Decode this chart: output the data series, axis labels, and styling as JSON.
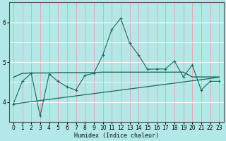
{
  "xlabel": "Humidex (Indice chaleur)",
  "bg_color": "#b3e8e8",
  "grid_color_v": "#f0a0a0",
  "grid_color_h": "#ffffff",
  "line_color": "#1a6b5a",
  "xlim": [
    -0.5,
    23.5
  ],
  "ylim": [
    3.5,
    6.5
  ],
  "xticks": [
    0,
    1,
    2,
    3,
    4,
    5,
    6,
    7,
    8,
    9,
    10,
    11,
    12,
    13,
    14,
    15,
    16,
    17,
    18,
    19,
    20,
    21,
    22,
    23
  ],
  "yticks": [
    4,
    5,
    6
  ],
  "series1_x": [
    0,
    1,
    2,
    3,
    4,
    5,
    6,
    7,
    8,
    9,
    10,
    11,
    12,
    13,
    14,
    15,
    16,
    17,
    18,
    19,
    20,
    21,
    22,
    23
  ],
  "series1_y": [
    3.95,
    4.52,
    4.72,
    3.65,
    4.7,
    4.52,
    4.38,
    4.3,
    4.67,
    4.72,
    5.18,
    5.82,
    6.1,
    5.48,
    5.18,
    4.82,
    4.83,
    4.83,
    5.03,
    4.63,
    4.93,
    4.3,
    4.52,
    4.52
  ],
  "series2_x": [
    0,
    1,
    2,
    3,
    4,
    5,
    6,
    7,
    8,
    9,
    10,
    11,
    12,
    13,
    14,
    15,
    16,
    17,
    18,
    19,
    20,
    21,
    22,
    23
  ],
  "series2_y": [
    4.62,
    4.72,
    4.73,
    4.73,
    4.73,
    4.74,
    4.74,
    4.74,
    4.74,
    4.74,
    4.75,
    4.75,
    4.75,
    4.75,
    4.75,
    4.75,
    4.75,
    4.75,
    4.75,
    4.75,
    4.63,
    4.63,
    4.63,
    4.63
  ],
  "series3_x": [
    0,
    23
  ],
  "series3_y": [
    3.95,
    4.62
  ]
}
